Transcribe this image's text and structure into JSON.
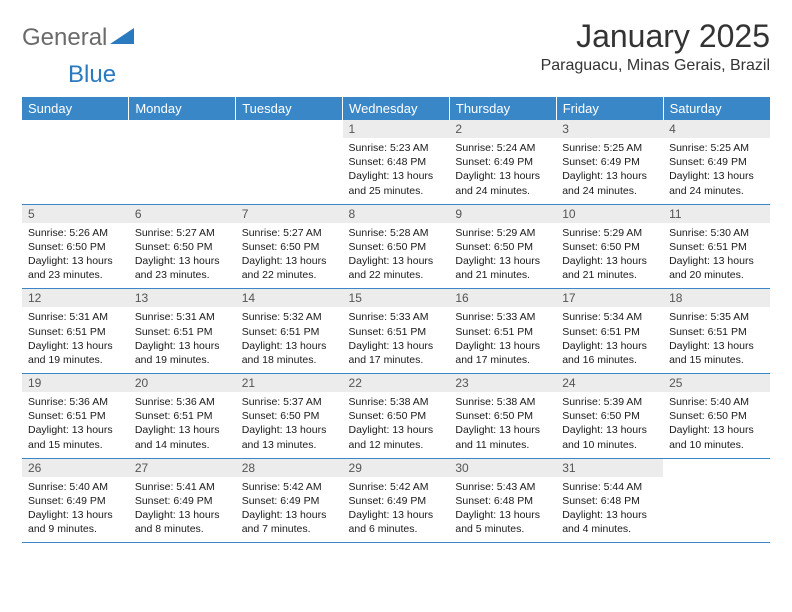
{
  "logo": {
    "general": "General",
    "blue": "Blue"
  },
  "title": "January 2025",
  "location": "Paraguacu, Minas Gerais, Brazil",
  "colors": {
    "header_bg": "#3a87c8",
    "header_text": "#ffffff",
    "daynum_bg": "#ececec",
    "daynum_text": "#555555",
    "border": "#3a87c8",
    "logo_general": "#6a6a6a",
    "logo_blue": "#2a7ac0",
    "body_text": "#1a1a1a"
  },
  "weekdays": [
    "Sunday",
    "Monday",
    "Tuesday",
    "Wednesday",
    "Thursday",
    "Friday",
    "Saturday"
  ],
  "weeks": [
    [
      null,
      null,
      null,
      {
        "d": "1",
        "sr": "5:23 AM",
        "ss": "6:48 PM",
        "dl": "13 hours and 25 minutes."
      },
      {
        "d": "2",
        "sr": "5:24 AM",
        "ss": "6:49 PM",
        "dl": "13 hours and 24 minutes."
      },
      {
        "d": "3",
        "sr": "5:25 AM",
        "ss": "6:49 PM",
        "dl": "13 hours and 24 minutes."
      },
      {
        "d": "4",
        "sr": "5:25 AM",
        "ss": "6:49 PM",
        "dl": "13 hours and 24 minutes."
      }
    ],
    [
      {
        "d": "5",
        "sr": "5:26 AM",
        "ss": "6:50 PM",
        "dl": "13 hours and 23 minutes."
      },
      {
        "d": "6",
        "sr": "5:27 AM",
        "ss": "6:50 PM",
        "dl": "13 hours and 23 minutes."
      },
      {
        "d": "7",
        "sr": "5:27 AM",
        "ss": "6:50 PM",
        "dl": "13 hours and 22 minutes."
      },
      {
        "d": "8",
        "sr": "5:28 AM",
        "ss": "6:50 PM",
        "dl": "13 hours and 22 minutes."
      },
      {
        "d": "9",
        "sr": "5:29 AM",
        "ss": "6:50 PM",
        "dl": "13 hours and 21 minutes."
      },
      {
        "d": "10",
        "sr": "5:29 AM",
        "ss": "6:50 PM",
        "dl": "13 hours and 21 minutes."
      },
      {
        "d": "11",
        "sr": "5:30 AM",
        "ss": "6:51 PM",
        "dl": "13 hours and 20 minutes."
      }
    ],
    [
      {
        "d": "12",
        "sr": "5:31 AM",
        "ss": "6:51 PM",
        "dl": "13 hours and 19 minutes."
      },
      {
        "d": "13",
        "sr": "5:31 AM",
        "ss": "6:51 PM",
        "dl": "13 hours and 19 minutes."
      },
      {
        "d": "14",
        "sr": "5:32 AM",
        "ss": "6:51 PM",
        "dl": "13 hours and 18 minutes."
      },
      {
        "d": "15",
        "sr": "5:33 AM",
        "ss": "6:51 PM",
        "dl": "13 hours and 17 minutes."
      },
      {
        "d": "16",
        "sr": "5:33 AM",
        "ss": "6:51 PM",
        "dl": "13 hours and 17 minutes."
      },
      {
        "d": "17",
        "sr": "5:34 AM",
        "ss": "6:51 PM",
        "dl": "13 hours and 16 minutes."
      },
      {
        "d": "18",
        "sr": "5:35 AM",
        "ss": "6:51 PM",
        "dl": "13 hours and 15 minutes."
      }
    ],
    [
      {
        "d": "19",
        "sr": "5:36 AM",
        "ss": "6:51 PM",
        "dl": "13 hours and 15 minutes."
      },
      {
        "d": "20",
        "sr": "5:36 AM",
        "ss": "6:51 PM",
        "dl": "13 hours and 14 minutes."
      },
      {
        "d": "21",
        "sr": "5:37 AM",
        "ss": "6:50 PM",
        "dl": "13 hours and 13 minutes."
      },
      {
        "d": "22",
        "sr": "5:38 AM",
        "ss": "6:50 PM",
        "dl": "13 hours and 12 minutes."
      },
      {
        "d": "23",
        "sr": "5:38 AM",
        "ss": "6:50 PM",
        "dl": "13 hours and 11 minutes."
      },
      {
        "d": "24",
        "sr": "5:39 AM",
        "ss": "6:50 PM",
        "dl": "13 hours and 10 minutes."
      },
      {
        "d": "25",
        "sr": "5:40 AM",
        "ss": "6:50 PM",
        "dl": "13 hours and 10 minutes."
      }
    ],
    [
      {
        "d": "26",
        "sr": "5:40 AM",
        "ss": "6:49 PM",
        "dl": "13 hours and 9 minutes."
      },
      {
        "d": "27",
        "sr": "5:41 AM",
        "ss": "6:49 PM",
        "dl": "13 hours and 8 minutes."
      },
      {
        "d": "28",
        "sr": "5:42 AM",
        "ss": "6:49 PM",
        "dl": "13 hours and 7 minutes."
      },
      {
        "d": "29",
        "sr": "5:42 AM",
        "ss": "6:49 PM",
        "dl": "13 hours and 6 minutes."
      },
      {
        "d": "30",
        "sr": "5:43 AM",
        "ss": "6:48 PM",
        "dl": "13 hours and 5 minutes."
      },
      {
        "d": "31",
        "sr": "5:44 AM",
        "ss": "6:48 PM",
        "dl": "13 hours and 4 minutes."
      },
      null
    ]
  ],
  "labels": {
    "sunrise": "Sunrise:",
    "sunset": "Sunset:",
    "daylight": "Daylight:"
  }
}
